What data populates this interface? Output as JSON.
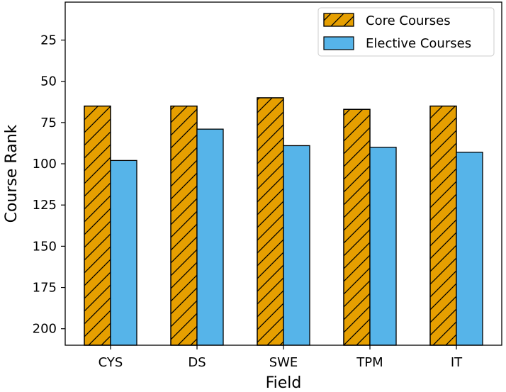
{
  "chart_data": {
    "type": "bar",
    "categories": [
      "CYS",
      "DS",
      "SWE",
      "TPM",
      "IT"
    ],
    "series": [
      {
        "name": "Core Courses",
        "values": [
          65,
          65,
          60,
          67,
          65
        ],
        "color": "#E69F00",
        "hatch": "diagonal"
      },
      {
        "name": "Elective Courses",
        "values": [
          98,
          79,
          89,
          90,
          93
        ],
        "color": "#56B4E9",
        "hatch": "none"
      }
    ],
    "xlabel": "Field",
    "ylabel": "Course Rank",
    "y_inverted": true,
    "ylim": [
      210,
      2
    ],
    "yticks": [
      25,
      50,
      75,
      100,
      125,
      150,
      175,
      200
    ],
    "grid": false,
    "legend_position": "top-right"
  }
}
